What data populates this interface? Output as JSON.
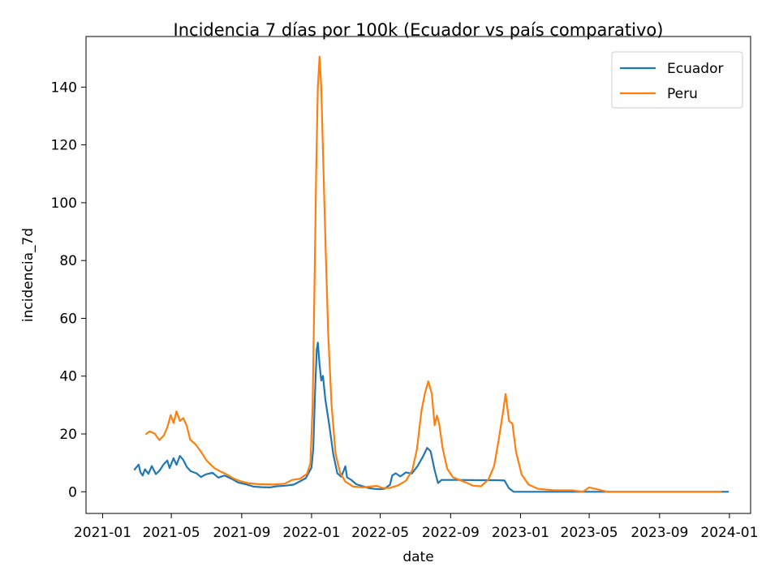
{
  "chart_data": {
    "type": "line",
    "title": "Incidencia 7 días por 100k (Ecuador vs país comparativo)",
    "xlabel": "date",
    "ylabel": "incidencia_7d",
    "x_ticks": [
      "2021-01",
      "2021-05",
      "2021-09",
      "2022-01",
      "2022-05",
      "2022-09",
      "2023-01",
      "2023-05",
      "2023-09",
      "2024-01"
    ],
    "y_ticks": [
      0,
      20,
      40,
      60,
      80,
      100,
      120,
      140
    ],
    "xlim": [
      "2020-12-03",
      "2024-02-07"
    ],
    "ylim": [
      -7.5,
      157.5
    ],
    "grid": false,
    "legend": "top-right",
    "series": [
      {
        "name": "Ecuador",
        "color": "#1f77b4",
        "points": [
          [
            "2021-02-25",
            7.5
          ],
          [
            "2021-03-05",
            9.4
          ],
          [
            "2021-03-08",
            6.8
          ],
          [
            "2021-03-12",
            5.6
          ],
          [
            "2021-03-16",
            7.8
          ],
          [
            "2021-03-22",
            6.2
          ],
          [
            "2021-03-28",
            8.9
          ],
          [
            "2021-04-04",
            6.1
          ],
          [
            "2021-04-10",
            7.2
          ],
          [
            "2021-04-18",
            9.6
          ],
          [
            "2021-04-24",
            10.8
          ],
          [
            "2021-04-28",
            8.2
          ],
          [
            "2021-05-05",
            11.6
          ],
          [
            "2021-05-10",
            9.3
          ],
          [
            "2021-05-16",
            12.4
          ],
          [
            "2021-05-22",
            11.0
          ],
          [
            "2021-05-28",
            8.6
          ],
          [
            "2021-06-04",
            7.1
          ],
          [
            "2021-06-14",
            6.4
          ],
          [
            "2021-06-22",
            5.1
          ],
          [
            "2021-06-30",
            6.0
          ],
          [
            "2021-07-12",
            6.6
          ],
          [
            "2021-07-22",
            4.9
          ],
          [
            "2021-08-02",
            5.6
          ],
          [
            "2021-08-14",
            4.5
          ],
          [
            "2021-08-26",
            3.2
          ],
          [
            "2021-09-08",
            2.6
          ],
          [
            "2021-09-22",
            1.8
          ],
          [
            "2021-10-06",
            1.6
          ],
          [
            "2021-10-20",
            1.5
          ],
          [
            "2021-11-01",
            1.9
          ],
          [
            "2021-11-16",
            2.1
          ],
          [
            "2021-12-01",
            2.5
          ],
          [
            "2021-12-12",
            3.6
          ],
          [
            "2021-12-22",
            4.7
          ],
          [
            "2022-01-01",
            8.4
          ],
          [
            "2022-01-04",
            15.0
          ],
          [
            "2022-01-07",
            34.0
          ],
          [
            "2022-01-10",
            49.0
          ],
          [
            "2022-01-12",
            51.6
          ],
          [
            "2022-01-15",
            44.0
          ],
          [
            "2022-01-18",
            38.5
          ],
          [
            "2022-01-21",
            40.1
          ],
          [
            "2022-01-25",
            32.0
          ],
          [
            "2022-02-01",
            23.0
          ],
          [
            "2022-02-08",
            13.0
          ],
          [
            "2022-02-15",
            6.4
          ],
          [
            "2022-02-22",
            5.2
          ],
          [
            "2022-03-01",
            8.8
          ],
          [
            "2022-03-04",
            5.0
          ],
          [
            "2022-03-12",
            4.0
          ],
          [
            "2022-03-20",
            2.6
          ],
          [
            "2022-04-01",
            1.9
          ],
          [
            "2022-04-10",
            1.3
          ],
          [
            "2022-04-20",
            1.0
          ],
          [
            "2022-05-01",
            0.9
          ],
          [
            "2022-05-08",
            1.0
          ],
          [
            "2022-05-18",
            2.4
          ],
          [
            "2022-05-22",
            5.6
          ],
          [
            "2022-05-28",
            6.4
          ],
          [
            "2022-06-05",
            5.3
          ],
          [
            "2022-06-15",
            6.7
          ],
          [
            "2022-06-25",
            6.3
          ],
          [
            "2022-07-05",
            8.8
          ],
          [
            "2022-07-15",
            12.3
          ],
          [
            "2022-07-22",
            15.2
          ],
          [
            "2022-07-28",
            14.0
          ],
          [
            "2022-08-04",
            7.5
          ],
          [
            "2022-08-10",
            3.0
          ],
          [
            "2022-08-16",
            4.1
          ],
          [
            "2022-09-15",
            4.1
          ],
          [
            "2022-10-20",
            4.0
          ],
          [
            "2022-11-20",
            4.0
          ],
          [
            "2022-12-04",
            3.9
          ],
          [
            "2022-12-12",
            1.2
          ],
          [
            "2022-12-20",
            0.0
          ],
          [
            "2023-12-31",
            0.0
          ]
        ]
      },
      {
        "name": "Peru",
        "color": "#ff7f0e",
        "points": [
          [
            "2021-03-17",
            19.8
          ],
          [
            "2021-03-24",
            20.9
          ],
          [
            "2021-04-02",
            20.1
          ],
          [
            "2021-04-10",
            17.9
          ],
          [
            "2021-04-18",
            19.5
          ],
          [
            "2021-04-24",
            22.3
          ],
          [
            "2021-04-30",
            26.5
          ],
          [
            "2021-05-05",
            23.8
          ],
          [
            "2021-05-10",
            27.8
          ],
          [
            "2021-05-16",
            24.5
          ],
          [
            "2021-05-22",
            25.5
          ],
          [
            "2021-05-28",
            22.8
          ],
          [
            "2021-06-03",
            18.0
          ],
          [
            "2021-06-12",
            16.5
          ],
          [
            "2021-06-22",
            13.8
          ],
          [
            "2021-07-01",
            11.0
          ],
          [
            "2021-07-08",
            9.5
          ],
          [
            "2021-07-16",
            8.1
          ],
          [
            "2021-07-26",
            7.0
          ],
          [
            "2021-08-06",
            6.0
          ],
          [
            "2021-08-18",
            4.6
          ],
          [
            "2021-08-30",
            3.6
          ],
          [
            "2021-09-12",
            3.0
          ],
          [
            "2021-10-01",
            2.6
          ],
          [
            "2021-10-25",
            2.5
          ],
          [
            "2021-11-15",
            2.8
          ],
          [
            "2021-11-28",
            4.1
          ],
          [
            "2021-12-12",
            4.5
          ],
          [
            "2021-12-24",
            6.2
          ],
          [
            "2021-12-30",
            9.8
          ],
          [
            "2022-01-03",
            30.0
          ],
          [
            "2022-01-06",
            70.0
          ],
          [
            "2022-01-09",
            110.0
          ],
          [
            "2022-01-12",
            140.0
          ],
          [
            "2022-01-15",
            150.5
          ],
          [
            "2022-01-18",
            140.0
          ],
          [
            "2022-01-21",
            118.0
          ],
          [
            "2022-01-25",
            88.0
          ],
          [
            "2022-01-30",
            55.0
          ],
          [
            "2022-02-05",
            30.0
          ],
          [
            "2022-02-12",
            13.0
          ],
          [
            "2022-02-20",
            6.5
          ],
          [
            "2022-03-01",
            3.5
          ],
          [
            "2022-03-15",
            1.8
          ],
          [
            "2022-04-01",
            1.5
          ],
          [
            "2022-04-12",
            1.8
          ],
          [
            "2022-04-25",
            2.0
          ],
          [
            "2022-05-05",
            1.3
          ],
          [
            "2022-05-18",
            1.3
          ],
          [
            "2022-06-01",
            2.2
          ],
          [
            "2022-06-15",
            3.8
          ],
          [
            "2022-06-26",
            7.5
          ],
          [
            "2022-07-04",
            14.5
          ],
          [
            "2022-07-12",
            28.0
          ],
          [
            "2022-07-18",
            34.0
          ],
          [
            "2022-07-24",
            38.2
          ],
          [
            "2022-07-30",
            34.0
          ],
          [
            "2022-08-04",
            23.0
          ],
          [
            "2022-08-08",
            26.4
          ],
          [
            "2022-08-12",
            23.5
          ],
          [
            "2022-08-18",
            15.0
          ],
          [
            "2022-08-26",
            8.0
          ],
          [
            "2022-09-05",
            5.0
          ],
          [
            "2022-09-15",
            4.2
          ],
          [
            "2022-09-28",
            3.2
          ],
          [
            "2022-10-10",
            2.1
          ],
          [
            "2022-10-24",
            1.9
          ],
          [
            "2022-11-06",
            4.2
          ],
          [
            "2022-11-16",
            9.0
          ],
          [
            "2022-11-24",
            18.0
          ],
          [
            "2022-12-01",
            27.0
          ],
          [
            "2022-12-06",
            33.8
          ],
          [
            "2022-12-12",
            24.5
          ],
          [
            "2022-12-18",
            23.5
          ],
          [
            "2022-12-24",
            14.0
          ],
          [
            "2023-01-03",
            6.0
          ],
          [
            "2023-01-15",
            2.5
          ],
          [
            "2023-02-01",
            1.0
          ],
          [
            "2023-03-01",
            0.5
          ],
          [
            "2023-04-01",
            0.5
          ],
          [
            "2023-04-20",
            0.0
          ],
          [
            "2023-05-01",
            1.5
          ],
          [
            "2023-05-20",
            0.6
          ],
          [
            "2023-06-01",
            0.0
          ],
          [
            "2023-12-18",
            0.0
          ]
        ]
      }
    ]
  }
}
